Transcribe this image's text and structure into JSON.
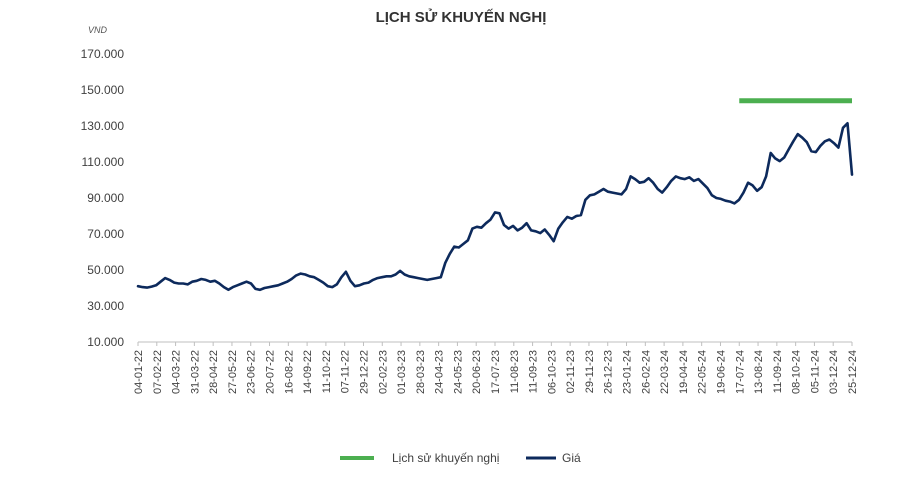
{
  "chart_data": {
    "type": "line",
    "title": "LỊCH SỬ KHUYẾN NGHỊ",
    "unit_label": "VND",
    "ylim": [
      10000,
      170000
    ],
    "y_ticks": [
      "170.000",
      "150.000",
      "130.000",
      "110.000",
      "90.000",
      "70.000",
      "50.000",
      "30.000",
      "10.000"
    ],
    "y_tick_values": [
      170000,
      150000,
      130000,
      110000,
      90000,
      70000,
      50000,
      30000,
      10000
    ],
    "x_ticks": [
      "04-01-22",
      "07-02-22",
      "04-03-22",
      "31-03-22",
      "28-04-22",
      "27-05-22",
      "23-06-22",
      "20-07-22",
      "16-08-22",
      "14-09-22",
      "11-10-22",
      "07-11-22",
      "29-12-22",
      "02-02-23",
      "01-03-23",
      "28-03-23",
      "24-04-23",
      "24-05-23",
      "20-06-23",
      "17-07-23",
      "11-08-23",
      "11-09-23",
      "06-10-23",
      "02-11-23",
      "29-11-23",
      "26-12-23",
      "23-01-24",
      "26-02-24",
      "22-03-24",
      "19-04-24",
      "22-05-24",
      "19-06-24",
      "17-07-24",
      "13-08-24",
      "11-09-24",
      "08-10-24",
      "05-11-24",
      "03-12-24",
      "25-12-24"
    ],
    "grid": false,
    "legend": "bottom",
    "series": [
      {
        "name": "Lịch sử khuyến nghị",
        "color": "#4caf50",
        "x_range": [
          "17-07-24",
          "25-12-24"
        ],
        "values": [
          144000,
          144000
        ]
      },
      {
        "name": "Giá",
        "color": "#0d2a5c",
        "values": [
          41000,
          40500,
          40200,
          40800,
          41500,
          43500,
          45500,
          44500,
          43000,
          42500,
          42500,
          42000,
          43500,
          44000,
          45000,
          44500,
          43500,
          44000,
          42500,
          40500,
          39000,
          40500,
          41500,
          42500,
          43500,
          42500,
          39500,
          39000,
          40000,
          40500,
          41000,
          41500,
          42500,
          43500,
          45000,
          47000,
          48000,
          47500,
          46500,
          46000,
          44500,
          43000,
          41000,
          40500,
          42000,
          46000,
          49000,
          44000,
          41000,
          41500,
          42500,
          43000,
          44500,
          45500,
          46000,
          46500,
          46500,
          47500,
          49500,
          47500,
          46500,
          46000,
          45500,
          45000,
          44500,
          45000,
          45500,
          46000,
          54000,
          59000,
          63000,
          62500,
          64500,
          66500,
          73000,
          74000,
          73500,
          76000,
          78000,
          82000,
          81500,
          75000,
          73000,
          74500,
          72000,
          73500,
          76000,
          72000,
          71500,
          70500,
          72500,
          69500,
          66000,
          73000,
          76500,
          79500,
          78500,
          80000,
          80500,
          89000,
          91500,
          92000,
          93500,
          95000,
          93500,
          93000,
          92500,
          92000,
          95000,
          102000,
          100500,
          98500,
          99000,
          101000,
          98500,
          95000,
          93000,
          96000,
          99500,
          102000,
          101000,
          100500,
          101500,
          99500,
          100500,
          98000,
          95500,
          91500,
          90000,
          89500,
          88500,
          88000,
          87000,
          89000,
          93000,
          98500,
          97000,
          94000,
          96000,
          102000,
          115000,
          112000,
          110500,
          112500,
          117000,
          121500,
          125500,
          123500,
          121000,
          116000,
          115500,
          119000,
          121500,
          122500,
          120500,
          118000,
          129000,
          131500,
          103000
        ]
      }
    ]
  }
}
